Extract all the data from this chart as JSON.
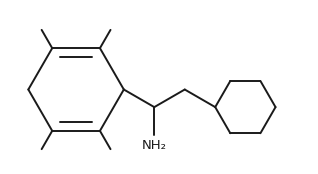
{
  "bg_color": "#ffffff",
  "line_color": "#1a1a1a",
  "line_width": 1.4,
  "font_size": 9.5,
  "nh2_label": "NH₂",
  "fig_width": 3.18,
  "fig_height": 1.74,
  "dpi": 100
}
